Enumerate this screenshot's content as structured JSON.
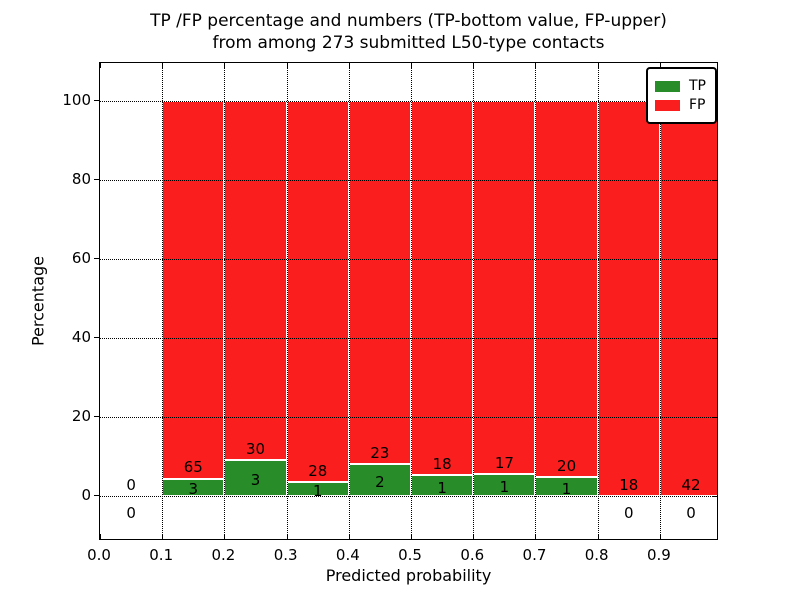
{
  "figure": {
    "title_line1": "TP /FP percentage and numbers (TP-bottom value, FP-upper)",
    "title_line2": "from among 273 submitted L50-type contacts",
    "xlabel": "Predicted probability",
    "ylabel": "Percentage"
  },
  "legend": {
    "items": [
      {
        "label": "TP",
        "color": "#288c28"
      },
      {
        "label": "FP",
        "color": "#fa1e1e"
      }
    ]
  },
  "chart_data": {
    "type": "bar",
    "stacked_to_percent": true,
    "title": "TP /FP percentage and numbers (TP-bottom value, FP-upper) from among 273 submitted L50-type contacts",
    "xlabel": "Predicted probability",
    "ylabel": "Percentage",
    "total_submitted": 273,
    "bin_starts": [
      0.0,
      0.1,
      0.2,
      0.3,
      0.4,
      0.5,
      0.6,
      0.7,
      0.8,
      0.9
    ],
    "bin_width": 0.1,
    "series": [
      {
        "name": "TP",
        "color": "#288c28",
        "counts": [
          0,
          3,
          3,
          1,
          2,
          1,
          1,
          1,
          0,
          0
        ]
      },
      {
        "name": "FP",
        "color": "#fa1e1e",
        "counts": [
          0,
          65,
          30,
          28,
          23,
          18,
          17,
          20,
          18,
          42
        ]
      }
    ],
    "tp_percent": [
      0,
      4.41,
      9.09,
      3.45,
      8.0,
      5.26,
      5.56,
      4.76,
      0,
      0
    ],
    "x_tick_labels": [
      "0.0",
      "0.1",
      "0.2",
      "0.3",
      "0.4",
      "0.5",
      "0.6",
      "0.7",
      "0.8",
      "0.9"
    ],
    "y_tick_values": [
      0,
      20,
      40,
      60,
      80,
      100
    ],
    "xlim": [
      0.0,
      0.995
    ],
    "ylim": [
      -11.4,
      109.6
    ],
    "grid": "dotted",
    "legend_position": "upper-right"
  }
}
